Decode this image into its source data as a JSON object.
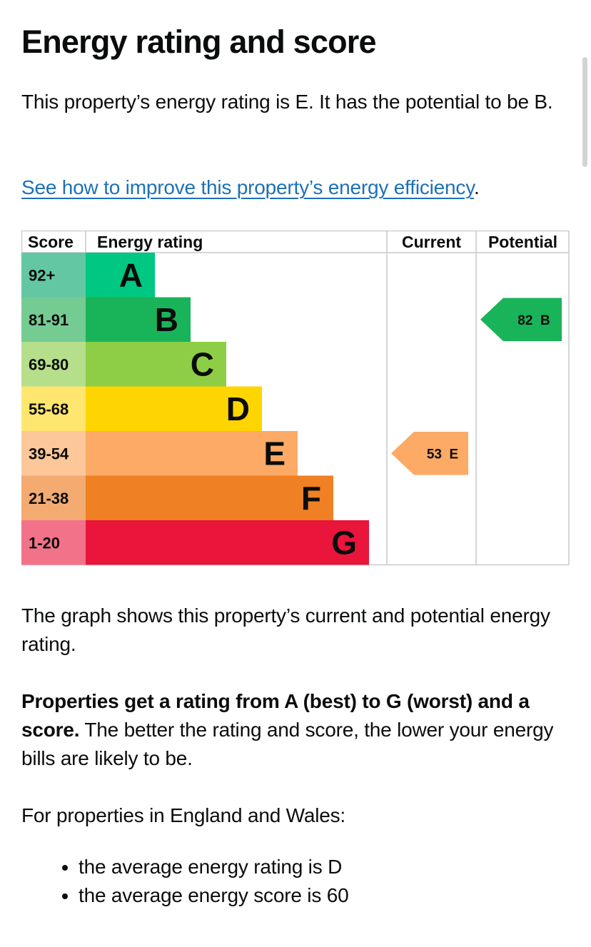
{
  "page": {
    "title": "Energy rating and score",
    "intro": "This property’s energy rating is E. It has the potential to be B.",
    "improve_link": "See how to improve this property’s energy efficiency",
    "improve_link_suffix": ".",
    "graph_description": "The graph shows this property’s current and potential energy rating.",
    "ratings_bold": "Properties get a rating from A (best) to G (worst) and a score.",
    "ratings_rest": " The better the rating and score, the lower your energy bills are likely to be.",
    "regional_intro": "For properties in England and Wales:",
    "averages": [
      "the average energy rating is D",
      "the average energy score is 60"
    ]
  },
  "chart_data": {
    "type": "table",
    "title": "Energy rating and score",
    "headers": {
      "score": "Score",
      "rating": "Energy rating",
      "current": "Current",
      "potential": "Potential"
    },
    "bands": [
      {
        "letter": "A",
        "range": "92+",
        "min": 92,
        "max": 100,
        "color": "#00c781",
        "score_color": "#63c7a4"
      },
      {
        "letter": "B",
        "range": "81-91",
        "min": 81,
        "max": 91,
        "color": "#19b459",
        "score_color": "#75cc92"
      },
      {
        "letter": "C",
        "range": "69-80",
        "min": 69,
        "max": 80,
        "color": "#8dce46",
        "score_color": "#b6df8c"
      },
      {
        "letter": "D",
        "range": "55-68",
        "min": 55,
        "max": 68,
        "color": "#ffd500",
        "score_color": "#ffe66f"
      },
      {
        "letter": "E",
        "range": "39-54",
        "min": 39,
        "max": 54,
        "color": "#fcaa65",
        "score_color": "#fdc79a"
      },
      {
        "letter": "F",
        "range": "21-38",
        "min": 21,
        "max": 38,
        "color": "#ef8023",
        "score_color": "#f4ab72"
      },
      {
        "letter": "G",
        "range": "1-20",
        "min": 1,
        "max": 20,
        "color": "#e9153b",
        "score_color": "#f27389"
      }
    ],
    "current": {
      "score": 53,
      "letter": "E",
      "label": "53  E"
    },
    "potential": {
      "score": 82,
      "letter": "B",
      "label": "82  B"
    }
  }
}
